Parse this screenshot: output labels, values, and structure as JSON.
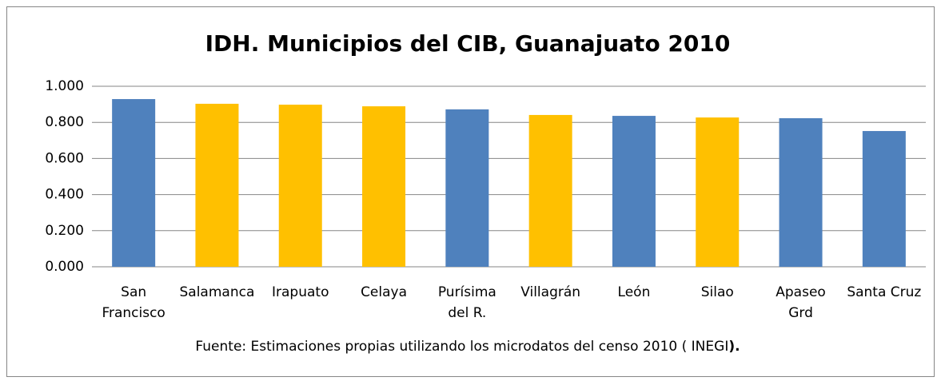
{
  "chart_data": {
    "type": "bar",
    "title": "IDH. Municipios del CIB, Guanajuato 2010",
    "categories": [
      [
        "San",
        "Francisco"
      ],
      [
        "Salamanca"
      ],
      [
        "Irapuato"
      ],
      [
        "Celaya"
      ],
      [
        "Purísima",
        "del R."
      ],
      [
        "Villagrán"
      ],
      [
        "León"
      ],
      [
        "Silao"
      ],
      [
        "Apaseo",
        "Grd"
      ],
      [
        "Santa Cruz"
      ]
    ],
    "values": [
      0.929,
      0.903,
      0.898,
      0.889,
      0.872,
      0.841,
      0.836,
      0.827,
      0.823,
      0.752
    ],
    "colors": [
      "#4f81bd",
      "#ffc000",
      "#ffc000",
      "#ffc000",
      "#4f81bd",
      "#ffc000",
      "#4f81bd",
      "#ffc000",
      "#4f81bd",
      "#4f81bd"
    ],
    "ylim": [
      0,
      1
    ],
    "yticks": [
      {
        "value": 0,
        "label": "0.000"
      },
      {
        "value": 0.2,
        "label": "0.200"
      },
      {
        "value": 0.4,
        "label": "0.400"
      },
      {
        "value": 0.6,
        "label": "0.600"
      },
      {
        "value": 0.8,
        "label": "0.800"
      },
      {
        "value": 1,
        "label": "1.000"
      }
    ],
    "grid": true,
    "source": [
      "Fuente: Estimaciones propias utilizando los microdatos del censo 2010 ( INEGI",
      ")."
    ]
  }
}
